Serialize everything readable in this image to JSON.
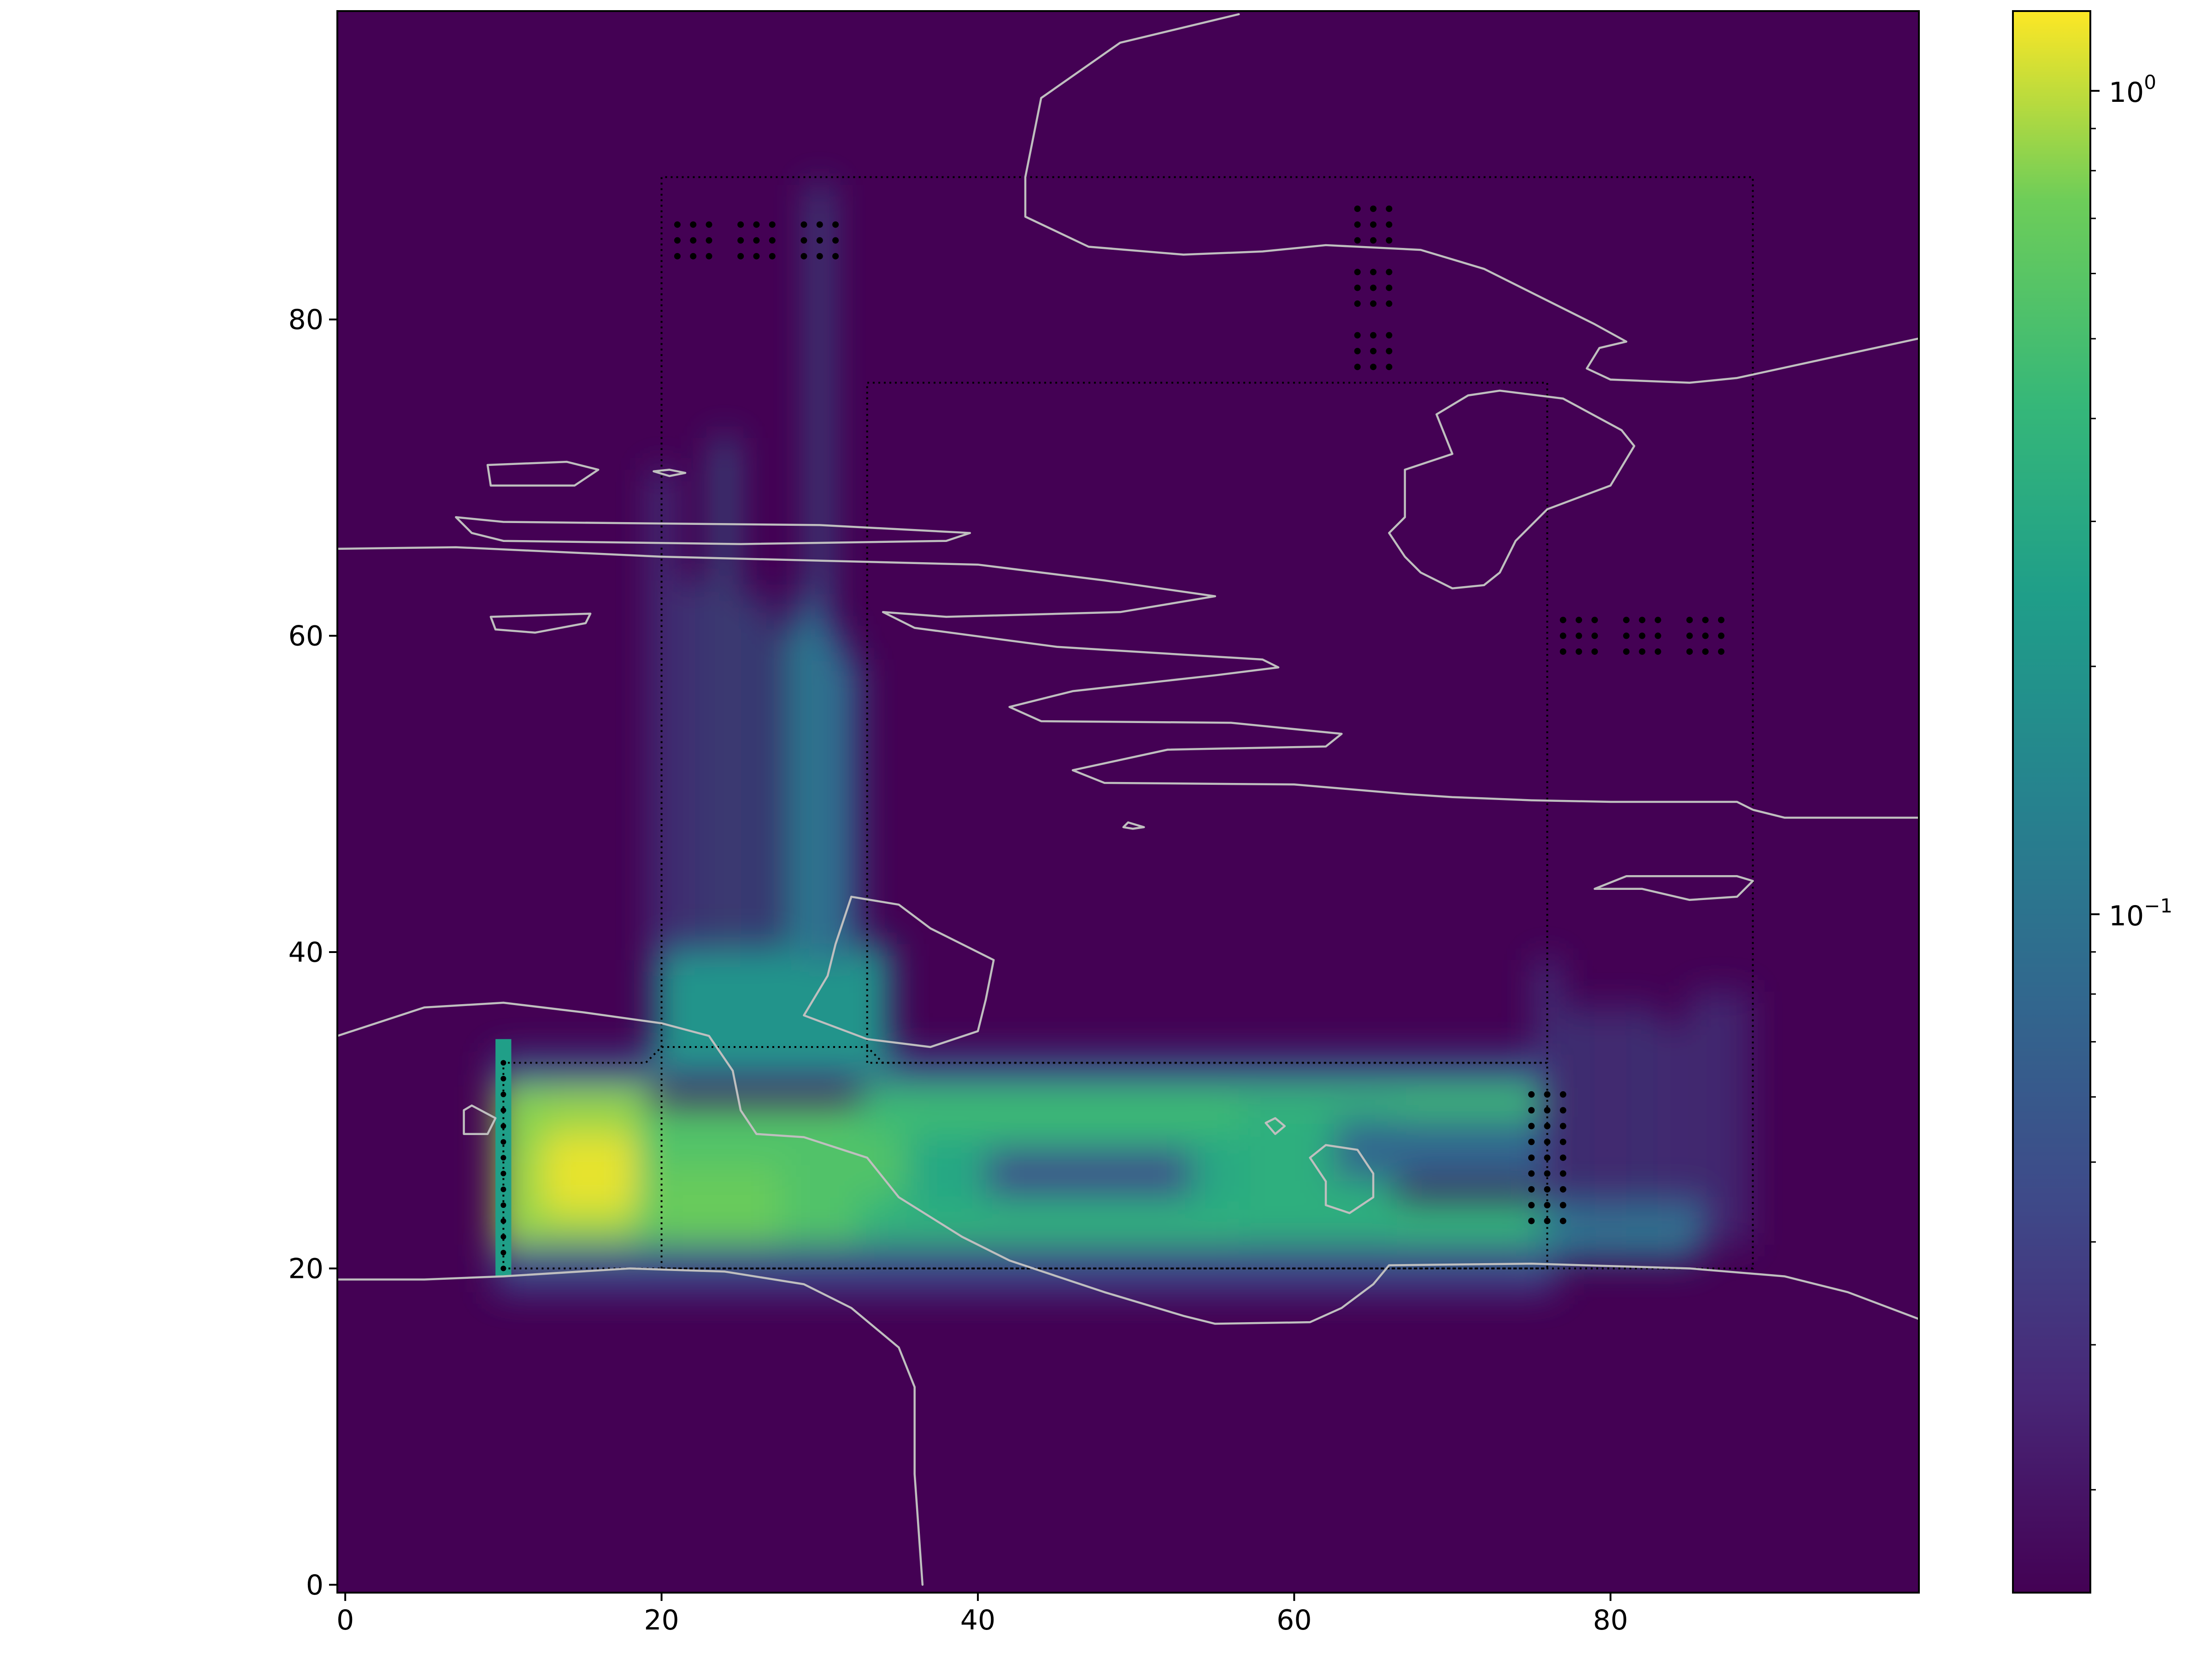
{
  "chart_data": {
    "type": "heatmap",
    "title": "",
    "xlabel": "",
    "ylabel": "",
    "xlim": [
      -0.5,
      99.5
    ],
    "ylim": [
      -0.5,
      99.5
    ],
    "x_ticks": [
      "0",
      "20",
      "40",
      "60",
      "80"
    ],
    "x_tick_values": [
      0,
      20,
      40,
      60,
      80
    ],
    "y_ticks": [
      "0",
      "20",
      "40",
      "60",
      "80"
    ],
    "y_tick_values": [
      0,
      20,
      40,
      60,
      80
    ],
    "colormap": "viridis",
    "colorscale": "log",
    "color_range": [
      0.015,
      1.25
    ],
    "colorbar_ticks": [
      {
        "base": "10",
        "exp": "0",
        "value": 1.0
      },
      {
        "base": "10",
        "exp": "−1",
        "value": 0.1
      }
    ],
    "colorbar_minor_ticks": [
      0.02,
      0.03,
      0.04,
      0.05,
      0.06,
      0.07,
      0.08,
      0.09,
      0.2,
      0.3,
      0.4,
      0.5,
      0.6,
      0.7,
      0.8,
      0.9
    ],
    "blobs": [
      {
        "x": [
          10,
          19
        ],
        "y": [
          21,
          31
        ],
        "v": 0.85
      },
      {
        "x": [
          13,
          19
        ],
        "y": [
          24,
          28
        ],
        "v": 1.15
      },
      {
        "x": [
          10,
          12
        ],
        "y": [
          28,
          31
        ],
        "v": 0.8
      },
      {
        "x": [
          19,
          35
        ],
        "y": [
          20,
          30
        ],
        "v": 0.55
      },
      {
        "x": [
          20,
          27
        ],
        "y": [
          21,
          26
        ],
        "v": 0.7
      },
      {
        "x": [
          33,
          76
        ],
        "y": [
          29,
          32
        ],
        "v": 0.45
      },
      {
        "x": [
          33,
          76
        ],
        "y": [
          21,
          24
        ],
        "v": 0.38
      },
      {
        "x": [
          36,
          60
        ],
        "y": [
          24,
          28
        ],
        "v": 0.3
      },
      {
        "x": [
          41,
          53
        ],
        "y": [
          25,
          27
        ],
        "v": 0.05
      },
      {
        "x": [
          57,
          66
        ],
        "y": [
          21,
          30
        ],
        "v": 0.35
      },
      {
        "x": [
          63,
          75
        ],
        "y": [
          26,
          29
        ],
        "v": 0.08
      },
      {
        "x": [
          10,
          76
        ],
        "y": [
          19,
          21
        ],
        "v": 0.045
      },
      {
        "x": [
          10,
          76
        ],
        "y": [
          32,
          33
        ],
        "v": 0.06
      },
      {
        "x": [
          76,
          85
        ],
        "y": [
          21,
          24
        ],
        "v": 0.12
      },
      {
        "x": [
          20,
          34
        ],
        "y": [
          33,
          40
        ],
        "v": 0.2
      }
    ],
    "streaks": [
      {
        "x": 20,
        "y0": 40,
        "y1": 70,
        "v": 0.05
      },
      {
        "x": 22,
        "y0": 40,
        "y1": 63,
        "v": 0.07
      },
      {
        "x": 24,
        "y0": 40,
        "y1": 72,
        "v": 0.1
      },
      {
        "x": 26,
        "y0": 40,
        "y1": 62,
        "v": 0.09
      },
      {
        "x": 28,
        "y0": 40,
        "y1": 60,
        "v": 0.14
      },
      {
        "x": 29,
        "y0": 40,
        "y1": 62,
        "v": 0.11
      },
      {
        "x": 30,
        "y0": 40,
        "y1": 88,
        "v": 0.08
      },
      {
        "x": 31,
        "y0": 40,
        "y1": 60,
        "v": 0.1
      },
      {
        "x": 32,
        "y0": 40,
        "y1": 58,
        "v": 0.08
      },
      {
        "x": 76,
        "y0": 24,
        "y1": 39,
        "v": 0.05
      },
      {
        "x": 78,
        "y0": 22,
        "y1": 36,
        "v": 0.06
      },
      {
        "x": 80,
        "y0": 22,
        "y1": 36,
        "v": 0.05
      },
      {
        "x": 82,
        "y0": 22,
        "y1": 36,
        "v": 0.06
      },
      {
        "x": 84,
        "y0": 22,
        "y1": 35,
        "v": 0.05
      },
      {
        "x": 86,
        "y0": 22,
        "y1": 37,
        "v": 0.05
      },
      {
        "x": 88,
        "y0": 22,
        "y1": 37,
        "v": 0.04
      }
    ],
    "hotspots": [
      {
        "x": 10,
        "y0": 20,
        "y1": 34,
        "v": 0.25
      }
    ],
    "region_outlines": [
      [
        [
          20,
          20
        ],
        [
          20,
          89
        ],
        [
          89,
          89
        ],
        [
          89,
          20
        ]
      ],
      [
        [
          33,
          33
        ],
        [
          33,
          76
        ],
        [
          76,
          76
        ],
        [
          76,
          33
        ]
      ],
      [
        [
          10,
          20
        ],
        [
          10,
          33
        ],
        [
          19,
          33
        ],
        [
          20,
          34
        ],
        [
          33,
          34
        ],
        [
          34,
          33
        ],
        [
          76,
          33
        ],
        [
          76,
          20
        ]
      ]
    ],
    "dot_clusters": [
      [
        22,
        85
      ],
      [
        26,
        85
      ],
      [
        30,
        85
      ],
      [
        65,
        86
      ],
      [
        65,
        82
      ],
      [
        65,
        78
      ],
      [
        78,
        60
      ],
      [
        82,
        60
      ],
      [
        86,
        60
      ],
      [
        76,
        30
      ],
      [
        76,
        27
      ],
      [
        76,
        24
      ]
    ],
    "dot_column": {
      "x": 10,
      "y": [
        20,
        21,
        22,
        23,
        24,
        25,
        26,
        27,
        28,
        29,
        30,
        31,
        32,
        33
      ]
    },
    "contours": [
      [
        [
          -0.5,
          65.5
        ],
        [
          7,
          65.6
        ],
        [
          20,
          65
        ],
        [
          40,
          64.5
        ],
        [
          48,
          63.5
        ],
        [
          55,
          62.5
        ],
        [
          49,
          61.5
        ],
        [
          38,
          61.2
        ],
        [
          34,
          61.5
        ],
        [
          36,
          60.5
        ],
        [
          45,
          59.3
        ],
        [
          58,
          58.5
        ],
        [
          59,
          58
        ],
        [
          55,
          57.5
        ],
        [
          46,
          56.5
        ],
        [
          42,
          55.5
        ],
        [
          44,
          54.6
        ],
        [
          56,
          54.5
        ],
        [
          63,
          53.8
        ],
        [
          62,
          53
        ],
        [
          52,
          52.8
        ],
        [
          46,
          51.5
        ],
        [
          48,
          50.7
        ],
        [
          60,
          50.6
        ],
        [
          67,
          50
        ],
        [
          70,
          49.8
        ],
        [
          75,
          49.6
        ],
        [
          80,
          49.5
        ],
        [
          88,
          49.5
        ],
        [
          89,
          49
        ],
        [
          91,
          48.5
        ],
        [
          98,
          48.5
        ],
        [
          99.5,
          48.5
        ]
      ],
      [
        [
          39.5,
          66.5
        ],
        [
          30,
          67
        ],
        [
          10,
          67.2
        ],
        [
          7,
          67.5
        ],
        [
          8,
          66.5
        ],
        [
          10,
          66
        ],
        [
          25,
          65.8
        ],
        [
          38,
          66
        ],
        [
          39.5,
          66.5
        ]
      ],
      [
        [
          9,
          70.8
        ],
        [
          14,
          71
        ],
        [
          16,
          70.5
        ],
        [
          14.5,
          69.5
        ],
        [
          9.2,
          69.5
        ],
        [
          9,
          70.8
        ]
      ],
      [
        [
          9.2,
          61.2
        ],
        [
          15.5,
          61.4
        ],
        [
          15.2,
          60.8
        ],
        [
          12,
          60.2
        ],
        [
          9.5,
          60.4
        ],
        [
          9.2,
          61.2
        ]
      ],
      [
        [
          19.5,
          70.4
        ],
        [
          20.5,
          70.5
        ],
        [
          21.5,
          70.3
        ],
        [
          20.5,
          70.1
        ],
        [
          19.5,
          70.4
        ]
      ],
      [
        [
          56.5,
          99.3
        ],
        [
          49,
          97.5
        ],
        [
          44,
          94
        ],
        [
          43,
          89
        ],
        [
          43,
          86.5
        ],
        [
          47,
          84.6
        ],
        [
          53,
          84.1
        ],
        [
          58,
          84.3
        ],
        [
          62,
          84.7
        ],
        [
          68,
          84.4
        ],
        [
          72,
          83.2
        ],
        [
          76,
          81.2
        ],
        [
          79,
          79.7
        ],
        [
          81,
          78.6
        ],
        [
          79.3,
          78.2
        ],
        [
          78.5,
          76.9
        ],
        [
          80,
          76.2
        ],
        [
          85,
          76
        ],
        [
          88,
          76.3
        ],
        [
          99.5,
          78.8
        ]
      ],
      [
        [
          80.7,
          73
        ],
        [
          77,
          75
        ],
        [
          73,
          75.5
        ],
        [
          71,
          75.2
        ],
        [
          69,
          74
        ],
        [
          70,
          71.5
        ],
        [
          67,
          70.5
        ],
        [
          67,
          67.5
        ],
        [
          66,
          66.5
        ],
        [
          67,
          65
        ],
        [
          68,
          64
        ],
        [
          70,
          63
        ],
        [
          72,
          63.2
        ],
        [
          73,
          64
        ],
        [
          74,
          66
        ],
        [
          76,
          68
        ],
        [
          80,
          69.5
        ],
        [
          81.5,
          72
        ],
        [
          80.7,
          73
        ]
      ],
      [
        [
          49.5,
          48.2
        ],
        [
          49.2,
          47.9
        ],
        [
          49.8,
          47.8
        ],
        [
          50.5,
          47.9
        ],
        [
          49.5,
          48.2
        ]
      ],
      [
        [
          79,
          44
        ],
        [
          81,
          44.8
        ],
        [
          88,
          44.8
        ],
        [
          89,
          44.5
        ],
        [
          88,
          43.5
        ],
        [
          85,
          43.3
        ],
        [
          82,
          44
        ],
        [
          79,
          44
        ]
      ],
      [
        [
          -0.5,
          34.7
        ],
        [
          5,
          36.5
        ],
        [
          10,
          36.8
        ],
        [
          15,
          36.2
        ],
        [
          20,
          35.5
        ],
        [
          23,
          34.7
        ],
        [
          24.5,
          32.5
        ],
        [
          25,
          30
        ],
        [
          26,
          28.5
        ],
        [
          29,
          28.3
        ],
        [
          33,
          27
        ],
        [
          35,
          24.5
        ],
        [
          39,
          22
        ],
        [
          42,
          20.5
        ],
        [
          48,
          18.5
        ],
        [
          53,
          17
        ],
        [
          55,
          16.5
        ],
        [
          61,
          16.6
        ],
        [
          63,
          17.5
        ],
        [
          65,
          19
        ],
        [
          66,
          20.2
        ],
        [
          75,
          20.3
        ],
        [
          85,
          20
        ],
        [
          91,
          19.5
        ],
        [
          95,
          18.5
        ],
        [
          99.5,
          16.8
        ]
      ],
      [
        [
          -0.5,
          19.3
        ],
        [
          5,
          19.3
        ],
        [
          10,
          19.5
        ],
        [
          18,
          20
        ],
        [
          24,
          19.8
        ],
        [
          29,
          19
        ],
        [
          32,
          17.5
        ],
        [
          35,
          15
        ],
        [
          36,
          12.5
        ],
        [
          36,
          7
        ],
        [
          36.5,
          0
        ]
      ],
      [
        [
          29,
          36
        ],
        [
          30.5,
          38.5
        ],
        [
          31,
          40.5
        ],
        [
          32,
          43.5
        ],
        [
          35,
          43
        ],
        [
          37,
          41.5
        ],
        [
          39,
          40.5
        ],
        [
          41,
          39.5
        ],
        [
          40.5,
          37
        ],
        [
          40,
          35
        ],
        [
          37,
          34
        ],
        [
          33,
          34.5
        ],
        [
          29,
          36
        ]
      ],
      [
        [
          62,
          25.5
        ],
        [
          61,
          27
        ],
        [
          62,
          27.8
        ],
        [
          64,
          27.5
        ],
        [
          65,
          26
        ],
        [
          65,
          24.5
        ],
        [
          63.5,
          23.5
        ],
        [
          62,
          24
        ],
        [
          62,
          25.5
        ]
      ],
      [
        [
          7.5,
          30
        ],
        [
          7.5,
          28.5
        ],
        [
          9,
          28.5
        ],
        [
          9.5,
          29.5
        ],
        [
          8,
          30.3
        ],
        [
          7.5,
          30
        ]
      ],
      [
        [
          58.2,
          29.2
        ],
        [
          58.8,
          28.5
        ],
        [
          59.4,
          29
        ],
        [
          58.8,
          29.5
        ],
        [
          58.2,
          29.2
        ]
      ]
    ]
  }
}
